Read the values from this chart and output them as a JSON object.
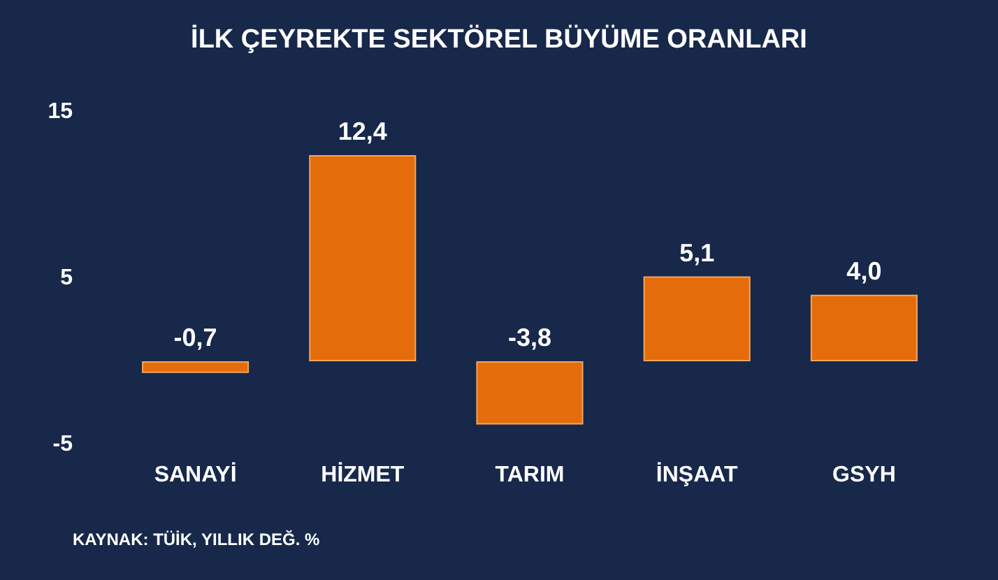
{
  "chart_data": {
    "type": "bar",
    "title": "İLK ÇEYREKTE SEKTÖREL BÜYÜME ORANLARI",
    "categories": [
      "SANAYİ",
      "HİZMET",
      "TARIM",
      "İNŞAAT",
      "GSYH"
    ],
    "values": [
      -0.7,
      12.4,
      -3.8,
      5.1,
      4.0
    ],
    "value_labels": [
      "-0,7",
      "12,4",
      "-3,8",
      "5,1",
      "4,0"
    ],
    "color": "#e46c0a",
    "ylim": [
      -5,
      15
    ],
    "yticks": [
      -5,
      5,
      15
    ],
    "grid": false,
    "annotations": [
      "KAYNAK: TÜİK, YILLIK DEĞ. %"
    ]
  }
}
